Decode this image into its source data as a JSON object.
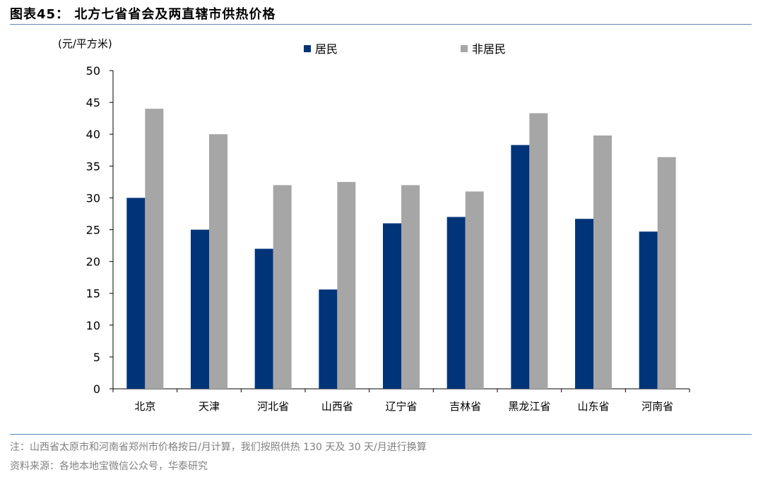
{
  "header": {
    "title": "图表45： 北方七省省会及两直辖市供热价格"
  },
  "footer": {
    "note": "注：山西省太原市和河南省郑州市价格按日/月计算，我们按照供热 130 天及 30 天/月进行换算",
    "source": "资料来源：各地本地宝微信公众号，华泰研究"
  },
  "chart_data": {
    "type": "bar",
    "title": "",
    "xlabel": "",
    "ylabel": "(元/平方米)",
    "ylim": [
      0,
      50
    ],
    "yticks": [
      0,
      5,
      10,
      15,
      20,
      25,
      30,
      35,
      40,
      45,
      50
    ],
    "grid": false,
    "legend_position": "top",
    "categories": [
      "北京",
      "天津",
      "河北省",
      "山西省",
      "辽宁省",
      "吉林省",
      "黑龙江省",
      "山东省",
      "河南省"
    ],
    "series": [
      {
        "name": "居民",
        "color": "#003478",
        "values": [
          30,
          25,
          22,
          15.6,
          26,
          27,
          38.3,
          26.7,
          24.7
        ]
      },
      {
        "name": "非居民",
        "color": "#a6a6a6",
        "values": [
          44,
          40,
          32,
          32.5,
          32,
          31,
          43.3,
          39.8,
          36.4
        ]
      }
    ]
  }
}
